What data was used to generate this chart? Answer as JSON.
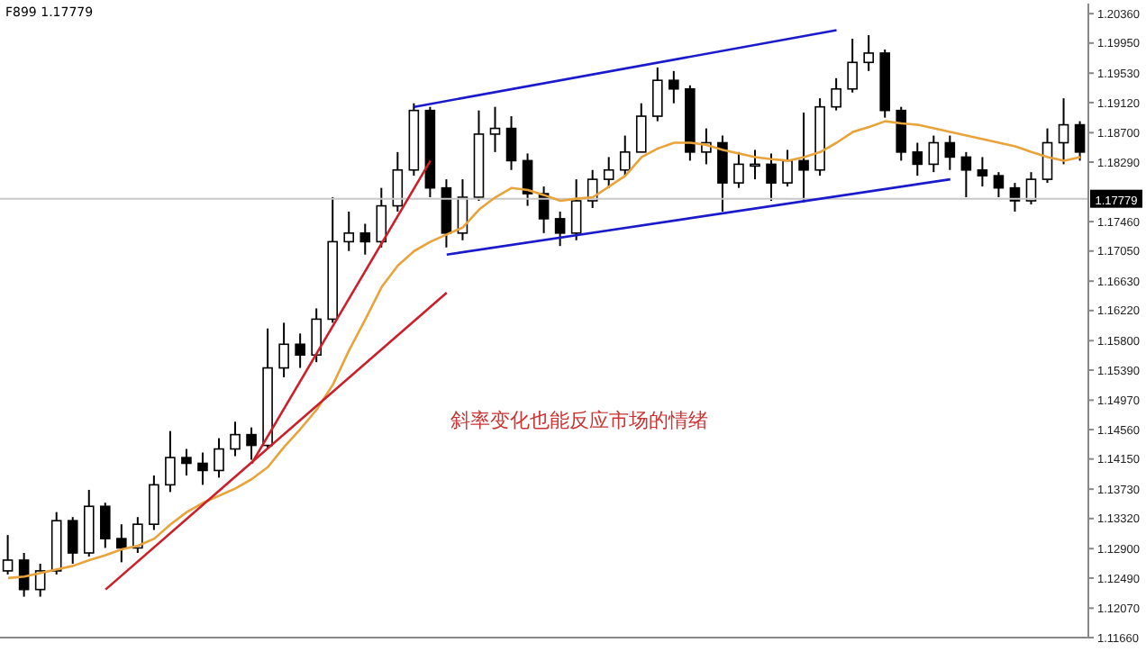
{
  "chart_data": {
    "type": "candlestick",
    "annotations": [
      "F899 1.17779",
      "斜率变化也能反应市场的情绪"
    ],
    "categories": [
      null,
      null,
      null,
      null,
      null,
      null,
      null,
      null,
      null,
      null,
      null,
      null,
      null,
      null,
      null,
      null,
      null,
      null,
      null,
      null,
      null,
      null,
      null,
      null,
      null,
      null,
      null,
      null,
      null,
      null,
      null,
      null,
      null,
      null,
      null,
      null,
      null,
      null,
      null,
      null,
      null,
      null,
      null,
      null,
      null,
      null,
      null,
      null,
      null,
      null,
      null,
      null,
      null,
      null,
      null,
      null,
      null,
      null,
      null,
      null,
      null,
      null,
      null,
      null,
      null,
      null,
      null
    ],
    "color": "#000000",
    "ohlc": [
      [
        1.1259,
        1.1309,
        1.1254,
        1.1274
      ],
      [
        1.1274,
        1.1284,
        1.1223,
        1.1233
      ],
      [
        1.1233,
        1.1269,
        1.1223,
        1.1259
      ],
      [
        1.1259,
        1.1341,
        1.1254,
        1.1329
      ],
      [
        1.1329,
        1.1334,
        1.1269,
        1.1284
      ],
      [
        1.1284,
        1.1372,
        1.1279,
        1.1349
      ],
      [
        1.1349,
        1.1354,
        1.1291,
        1.1304
      ],
      [
        1.1304,
        1.1324,
        1.1271,
        1.1291
      ],
      [
        1.1291,
        1.1334,
        1.1284,
        1.1324
      ],
      [
        1.1324,
        1.1392,
        1.1316,
        1.1379
      ],
      [
        1.1379,
        1.1454,
        1.1369,
        1.1417
      ],
      [
        1.1417,
        1.1429,
        1.1392,
        1.1409
      ],
      [
        1.1409,
        1.1424,
        1.1379,
        1.1399
      ],
      [
        1.1399,
        1.1444,
        1.1389,
        1.1429
      ],
      [
        1.1429,
        1.1467,
        1.1419,
        1.1449
      ],
      [
        1.1449,
        1.1459,
        1.1414,
        1.1434
      ],
      [
        1.1434,
        1.1597,
        1.1429,
        1.1542
      ],
      [
        1.1542,
        1.1605,
        1.1529,
        1.1575
      ],
      [
        1.1575,
        1.159,
        1.1542,
        1.156
      ],
      [
        1.156,
        1.1625,
        1.155,
        1.161
      ],
      [
        1.161,
        1.178,
        1.1605,
        1.1718
      ],
      [
        1.1718,
        1.176,
        1.1705,
        1.173
      ],
      [
        1.173,
        1.1743,
        1.17,
        1.1718
      ],
      [
        1.1718,
        1.1793,
        1.171,
        1.1768
      ],
      [
        1.1768,
        1.1843,
        1.176,
        1.1818
      ],
      [
        1.1818,
        1.1911,
        1.181,
        1.1901
      ],
      [
        1.1901,
        1.1906,
        1.178,
        1.1793
      ],
      [
        1.1793,
        1.1805,
        1.171,
        1.173
      ],
      [
        1.173,
        1.1805,
        1.172,
        1.178
      ],
      [
        1.178,
        1.1901,
        1.1775,
        1.1868
      ],
      [
        1.1868,
        1.1906,
        1.1843,
        1.1876
      ],
      [
        1.1876,
        1.1893,
        1.1818,
        1.1831
      ],
      [
        1.1831,
        1.1841,
        1.1768,
        1.1785
      ],
      [
        1.1785,
        1.1795,
        1.173,
        1.175
      ],
      [
        1.175,
        1.176,
        1.1712,
        1.173
      ],
      [
        1.173,
        1.1805,
        1.172,
        1.1775
      ],
      [
        1.1775,
        1.1818,
        1.1765,
        1.1805
      ],
      [
        1.1805,
        1.1836,
        1.1793,
        1.1818
      ],
      [
        1.1818,
        1.1866,
        1.181,
        1.1843
      ],
      [
        1.1843,
        1.1911,
        1.1843,
        1.1893
      ],
      [
        1.1893,
        1.1961,
        1.1886,
        1.1943
      ],
      [
        1.1943,
        1.1956,
        1.1911,
        1.1931
      ],
      [
        1.1931,
        1.1936,
        1.1831,
        1.1843
      ],
      [
        1.1843,
        1.1876,
        1.1826,
        1.1856
      ],
      [
        1.1856,
        1.1866,
        1.176,
        1.18
      ],
      [
        1.18,
        1.1843,
        1.1793,
        1.1826
      ],
      [
        1.1826,
        1.1846,
        1.1805,
        1.1826
      ],
      [
        1.1826,
        1.1841,
        1.1775,
        1.18
      ],
      [
        1.18,
        1.1846,
        1.1795,
        1.1831
      ],
      [
        1.1831,
        1.1898,
        1.1773,
        1.1818
      ],
      [
        1.1818,
        1.1918,
        1.181,
        1.1906
      ],
      [
        1.1906,
        1.1946,
        1.1901,
        1.1931
      ],
      [
        1.1931,
        1.2001,
        1.1926,
        1.1968
      ],
      [
        1.1968,
        1.2006,
        1.1956,
        1.1981
      ],
      [
        1.1981,
        1.1986,
        1.1891,
        1.1901
      ],
      [
        1.1901,
        1.1906,
        1.1831,
        1.1843
      ],
      [
        1.1843,
        1.1856,
        1.181,
        1.1826
      ],
      [
        1.1826,
        1.1866,
        1.1815,
        1.1856
      ],
      [
        1.1856,
        1.1866,
        1.1818,
        1.1836
      ],
      [
        1.1836,
        1.1843,
        1.178,
        1.1818
      ],
      [
        1.1818,
        1.1836,
        1.1795,
        1.181
      ],
      [
        1.181,
        1.1815,
        1.178,
        1.1793
      ],
      [
        1.1793,
        1.18,
        1.176,
        1.1775
      ],
      [
        1.1775,
        1.1815,
        1.177,
        1.1805
      ],
      [
        1.1805,
        1.1876,
        1.18,
        1.1856
      ],
      [
        1.1856,
        1.1918,
        1.1826,
        1.1881
      ],
      [
        1.1881,
        1.1886,
        1.1831,
        1.1843
      ]
    ],
    "series": [
      {
        "type": "line",
        "color": "#e8a33a",
        "values": [
          1.1249,
          1.1251,
          1.1256,
          1.1261,
          1.1266,
          1.1274,
          1.1281,
          1.1289,
          1.1294,
          1.1304,
          1.1324,
          1.1341,
          1.1354,
          1.1364,
          1.1374,
          1.1387,
          1.1404,
          1.1432,
          1.1457,
          1.1484,
          1.1519,
          1.1567,
          1.161,
          1.1655,
          1.1685,
          1.1705,
          1.1718,
          1.1728,
          1.1738,
          1.1763,
          1.178,
          1.1793,
          1.179,
          1.1783,
          1.1775,
          1.1778,
          1.178,
          1.1795,
          1.181,
          1.1836,
          1.1848,
          1.1856,
          1.1856,
          1.1853,
          1.1846,
          1.1841,
          1.1836,
          1.1833,
          1.1831,
          1.1836,
          1.1843,
          1.1856,
          1.1871,
          1.1878,
          1.1886,
          1.1883,
          1.1881,
          1.1876,
          1.1871,
          1.1866,
          1.1861,
          1.1856,
          1.1851,
          1.1843,
          1.1836,
          1.1831,
          1.1836
        ]
      },
      {
        "type": "line",
        "color": "#1a1acc",
        "values": [
          null,
          null,
          null,
          null,
          null,
          null,
          null,
          null,
          null,
          null,
          null,
          null,
          null,
          null,
          null,
          null,
          null,
          null,
          null,
          null,
          null,
          null,
          null,
          null,
          null,
          1.1906,
          null,
          null,
          null,
          null,
          null,
          null,
          null,
          null,
          null,
          null,
          null,
          null,
          null,
          null,
          null,
          null,
          null,
          null,
          null,
          null,
          null,
          null,
          null,
          null,
          null,
          1.2013,
          null,
          null,
          null,
          null,
          null,
          null,
          null,
          null,
          null,
          null,
          null,
          null,
          null,
          null,
          null
        ]
      },
      {
        "type": "line",
        "color": "#1a1acc",
        "values": [
          null,
          null,
          null,
          null,
          null,
          null,
          null,
          null,
          null,
          null,
          null,
          null,
          null,
          null,
          null,
          null,
          null,
          null,
          null,
          null,
          null,
          null,
          null,
          null,
          null,
          null,
          null,
          1.17,
          null,
          null,
          null,
          null,
          null,
          null,
          null,
          null,
          null,
          null,
          null,
          null,
          null,
          null,
          null,
          null,
          null,
          null,
          null,
          null,
          null,
          null,
          null,
          null,
          null,
          null,
          null,
          null,
          null,
          null,
          1.1805,
          null,
          null,
          null,
          null,
          null,
          null,
          null,
          null
        ]
      },
      {
        "type": "line",
        "color": "#cc1f2a",
        "values": [
          null,
          null,
          null,
          null,
          null,
          null,
          null,
          null,
          null,
          null,
          null,
          null,
          null,
          null,
          null,
          1.1409,
          null,
          null,
          null,
          null,
          null,
          null,
          null,
          null,
          null,
          null,
          1.1831,
          null,
          null,
          null,
          null,
          null,
          null,
          null,
          null,
          null,
          null,
          null,
          null,
          null,
          null,
          null,
          null,
          null,
          null,
          null,
          null,
          null,
          null,
          null,
          null,
          null,
          null,
          null,
          null,
          null,
          null,
          null,
          null,
          null,
          null,
          null,
          null,
          null,
          null,
          null,
          null
        ]
      },
      {
        "type": "line",
        "color": "#cc1f2a",
        "values": [
          null,
          null,
          null,
          null,
          null,
          null,
          1.1233,
          null,
          null,
          null,
          null,
          null,
          null,
          null,
          null,
          null,
          null,
          null,
          null,
          null,
          null,
          null,
          null,
          null,
          null,
          null,
          null,
          1.1647,
          null,
          null,
          null,
          null,
          null,
          null,
          null,
          null,
          null,
          null,
          null,
          null,
          null,
          null,
          null,
          null,
          null,
          null,
          null,
          null,
          null,
          null,
          null,
          null,
          null,
          null,
          null,
          null,
          null,
          null,
          null,
          null,
          null,
          null,
          null,
          null,
          null,
          null,
          null
        ]
      }
    ],
    "ylim": [
      1.1166,
      1.205
    ],
    "yticks": [
      {
        "value": 1.1166,
        "label": "1.11660"
      },
      {
        "value": 1.1207,
        "label": "1.12070"
      },
      {
        "value": 1.1249,
        "label": "1.12490"
      },
      {
        "value": 1.129,
        "label": "1.12900"
      },
      {
        "value": 1.1332,
        "label": "1.13320"
      },
      {
        "value": 1.1373,
        "label": "1.13730"
      },
      {
        "value": 1.1415,
        "label": "1.14150"
      },
      {
        "value": 1.1456,
        "label": "1.14560"
      },
      {
        "value": 1.1497,
        "label": "1.14970"
      },
      {
        "value": 1.1539,
        "label": "1.15390"
      },
      {
        "value": 1.158,
        "label": "1.15800"
      },
      {
        "value": 1.1622,
        "label": "1.16220"
      },
      {
        "value": 1.1663,
        "label": "1.16630"
      },
      {
        "value": 1.1705,
        "label": "1.17050"
      },
      {
        "value": 1.1746,
        "label": "1.17460"
      },
      {
        "value": 1.1829,
        "label": "1.18290"
      },
      {
        "value": 1.187,
        "label": "1.18700"
      },
      {
        "value": 1.1912,
        "label": "1.19120"
      },
      {
        "value": 1.1953,
        "label": "1.19530"
      },
      {
        "value": 1.1995,
        "label": "1.19950"
      },
      {
        "value": 1.2036,
        "label": "1.20360"
      }
    ],
    "tick_labels": "y",
    "marker": "none",
    "ref_lines": [
      {
        "axis": "y",
        "value": 1.17779,
        "label": "1.17779",
        "color": "#c8c8c8"
      }
    ]
  }
}
